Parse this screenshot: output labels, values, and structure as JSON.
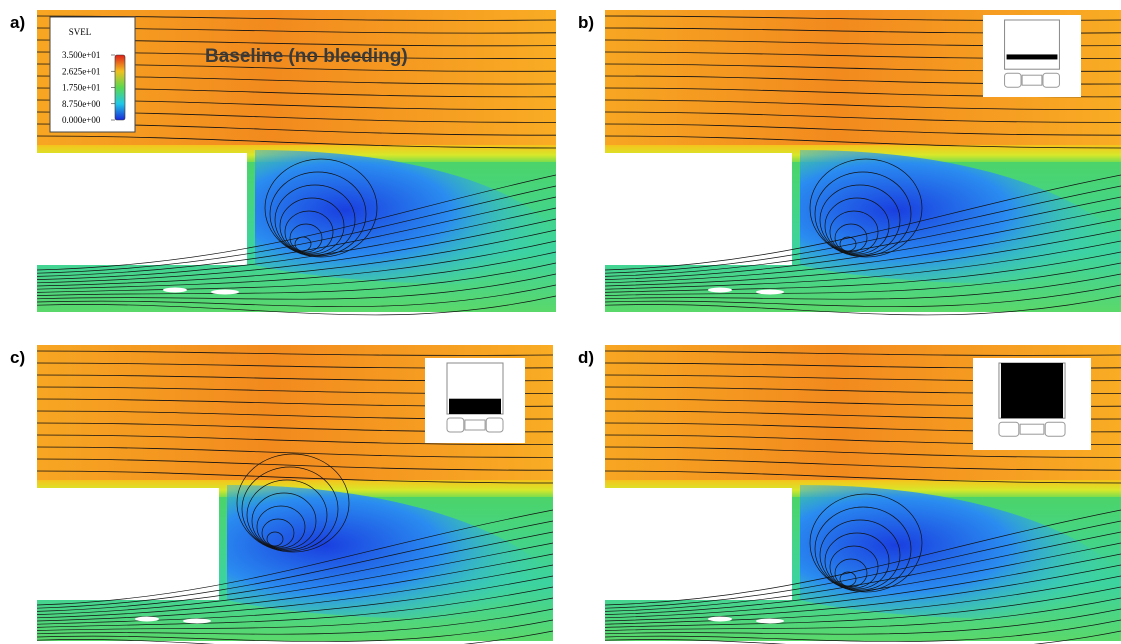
{
  "panels": [
    {
      "label": "a)",
      "title": "Baseline (no bleeding)"
    },
    {
      "label": "b)"
    },
    {
      "label": "c)"
    },
    {
      "label": "d)"
    }
  ],
  "legend": {
    "title": "SVEL",
    "ticks": [
      {
        "value": 35,
        "label": "3.500e+01"
      },
      {
        "value": 26.25,
        "label": "2.625e+01"
      },
      {
        "value": 17.5,
        "label": "1.750e+01"
      },
      {
        "value": 8.75,
        "label": "8.750e+00"
      },
      {
        "value": 0,
        "label": "0.000e+00"
      }
    ]
  }
}
